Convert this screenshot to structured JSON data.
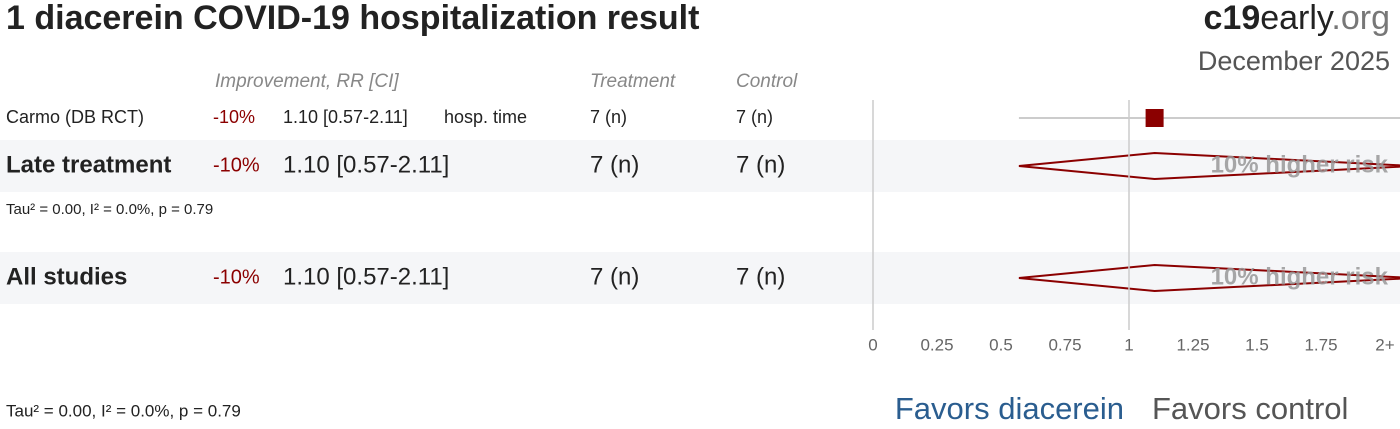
{
  "header": {
    "title": "1 diacerein COVID-19 hospitalization result",
    "brand_bold": "c19",
    "brand_mid": "early",
    "brand_tld": ".org",
    "date": "December 2025"
  },
  "columns": {
    "improvement": "Improvement, RR [CI]",
    "treatment": "Treatment",
    "control": "Control"
  },
  "chart_data": {
    "type": "forest",
    "xlim": [
      0,
      2
    ],
    "xticks": [
      0,
      0.25,
      0.5,
      0.75,
      1,
      1.25,
      1.5,
      1.75,
      {
        "value": 2,
        "label": "2+"
      }
    ],
    "reference": 1,
    "color": "#8b0000",
    "rows": [
      {
        "kind": "study",
        "label": "Carmo (DB RCT)",
        "improvement": "-10%",
        "rr": 1.1,
        "ci": [
          0.57,
          2.11
        ],
        "rr_text": "1.10 [0.57-2.11]",
        "outcome": "hosp. time",
        "treatment": "7 (n)",
        "control": "7 (n)"
      },
      {
        "kind": "summary",
        "label": "Late treatment",
        "improvement": "-10%",
        "rr": 1.1,
        "ci": [
          0.57,
          2.11
        ],
        "rr_text": "1.10 [0.57-2.11]",
        "treatment": "7 (n)",
        "control": "7 (n)",
        "effect_label": "10% higher risk",
        "heterogeneity": "Tau² = 0.00, I² = 0.0%, p = 0.79"
      },
      {
        "kind": "summary",
        "label": "All studies",
        "improvement": "-10%",
        "rr": 1.1,
        "ci": [
          0.57,
          2.11
        ],
        "rr_text": "1.10 [0.57-2.11]",
        "treatment": "7 (n)",
        "control": "7 (n)",
        "effect_label": "10% higher risk"
      }
    ],
    "heterogeneity": "Tau² = 0.00, I² = 0.0%, p = 0.79",
    "favors_left": "Favors diacerein",
    "favors_right": "Favors control"
  }
}
